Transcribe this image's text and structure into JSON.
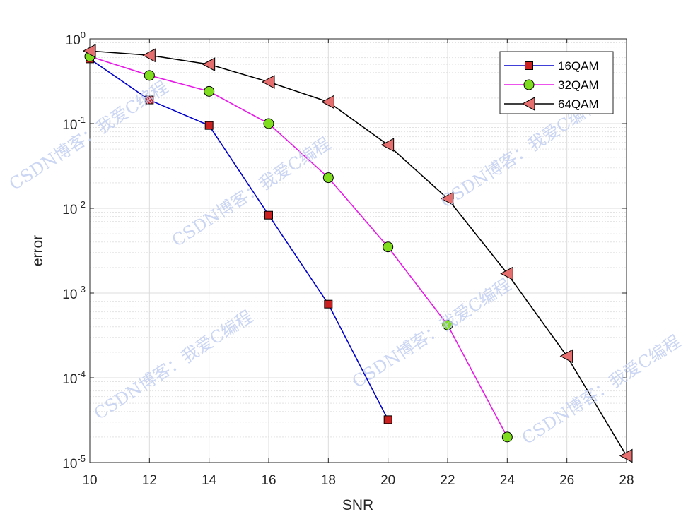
{
  "chart_data": {
    "type": "line",
    "xlabel": "SNR",
    "ylabel": "error",
    "y_scale": "log",
    "xlim": [
      10,
      28
    ],
    "ylim": [
      1e-05,
      1
    ],
    "grid": true,
    "x_ticks": [
      "10",
      "12",
      "14",
      "16",
      "18",
      "20",
      "22",
      "24",
      "26",
      "28"
    ],
    "y_ticks": [
      {
        "base": "10",
        "exp": "0"
      },
      {
        "base": "10",
        "exp": "-1"
      },
      {
        "base": "10",
        "exp": "-2"
      },
      {
        "base": "10",
        "exp": "-3"
      },
      {
        "base": "10",
        "exp": "-4"
      },
      {
        "base": "10",
        "exp": "-5"
      }
    ],
    "legend_position": "top-right",
    "series": [
      {
        "name": "16QAM",
        "color": "#0000cc",
        "marker": "square",
        "marker_fill": "#cc1f1f",
        "x": [
          10,
          12,
          14,
          16,
          18,
          20
        ],
        "y": [
          0.58,
          0.19,
          0.095,
          0.0083,
          0.00074,
          3.2e-05
        ]
      },
      {
        "name": "32QAM",
        "color": "#e619e6",
        "marker": "circle",
        "marker_fill": "#7fdc1f",
        "x": [
          10,
          12,
          14,
          16,
          18,
          20,
          22,
          24
        ],
        "y": [
          0.62,
          0.37,
          0.24,
          0.1,
          0.023,
          0.0035,
          0.00042,
          2e-05
        ]
      },
      {
        "name": "64QAM",
        "color": "#000000",
        "marker": "triangle-left",
        "marker_fill": "#e56f6f",
        "x": [
          10,
          12,
          14,
          16,
          18,
          20,
          22,
          24,
          26,
          28
        ],
        "y": [
          0.72,
          0.64,
          0.5,
          0.31,
          0.18,
          0.056,
          0.013,
          0.0017,
          0.00018,
          1.2e-05
        ]
      }
    ]
  },
  "watermark": {
    "text": "CSDN博客：我爱C编程"
  }
}
